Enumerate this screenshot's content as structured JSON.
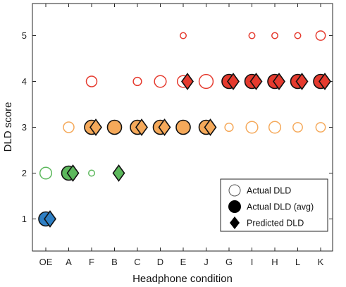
{
  "chart_data": {
    "type": "scatter",
    "xlabel": "Headphone condition",
    "ylabel": "DLD score",
    "categories": [
      "OE",
      "A",
      "F",
      "B",
      "C",
      "D",
      "E",
      "J",
      "G",
      "I",
      "H",
      "L",
      "K"
    ],
    "ylim": [
      0.3,
      5.7
    ],
    "yticks": [
      1,
      2,
      3,
      4,
      5
    ],
    "grid": false,
    "legend_position": "bottom-right",
    "legend": [
      {
        "label": "Actual DLD",
        "marker": "open-circle"
      },
      {
        "label": "Actual DLD (avg)",
        "marker": "filled-circle"
      },
      {
        "label": "Predicted DLD",
        "marker": "diamond"
      }
    ],
    "score_colors": {
      "1": "#2e7fc4",
      "2": "#5cb85c",
      "3": "#f5a95a",
      "4": "#e53a2e",
      "5": "#e53a2e"
    },
    "actual_dld": [
      {
        "category": "OE",
        "score": 2,
        "frequency": 0.35
      },
      {
        "category": "A",
        "score": 3,
        "frequency": 0.3
      },
      {
        "category": "F",
        "score": 2,
        "frequency": 0.1
      },
      {
        "category": "F",
        "score": 4,
        "frequency": 0.3
      },
      {
        "category": "C",
        "score": 4,
        "frequency": 0.2
      },
      {
        "category": "D",
        "score": 4,
        "frequency": 0.35
      },
      {
        "category": "E",
        "score": 4,
        "frequency": 0.35
      },
      {
        "category": "E",
        "score": 5,
        "frequency": 0.1
      },
      {
        "category": "J",
        "score": 4,
        "frequency": 0.45
      },
      {
        "category": "G",
        "score": 3,
        "frequency": 0.2
      },
      {
        "category": "I",
        "score": 3,
        "frequency": 0.35
      },
      {
        "category": "I",
        "score": 5,
        "frequency": 0.1
      },
      {
        "category": "H",
        "score": 3,
        "frequency": 0.35
      },
      {
        "category": "H",
        "score": 5,
        "frequency": 0.1
      },
      {
        "category": "L",
        "score": 3,
        "frequency": 0.25
      },
      {
        "category": "L",
        "score": 5,
        "frequency": 0.1
      },
      {
        "category": "K",
        "score": 3,
        "frequency": 0.25
      },
      {
        "category": "K",
        "score": 5,
        "frequency": 0.25
      }
    ],
    "actual_dld_avg": [
      {
        "category": "OE",
        "score": 1
      },
      {
        "category": "A",
        "score": 2
      },
      {
        "category": "F",
        "score": 3
      },
      {
        "category": "B",
        "score": 3
      },
      {
        "category": "C",
        "score": 3
      },
      {
        "category": "D",
        "score": 3
      },
      {
        "category": "E",
        "score": 3
      },
      {
        "category": "J",
        "score": 3
      },
      {
        "category": "G",
        "score": 4
      },
      {
        "category": "I",
        "score": 4
      },
      {
        "category": "H",
        "score": 4
      },
      {
        "category": "L",
        "score": 4
      },
      {
        "category": "K",
        "score": 4
      }
    ],
    "predicted_dld": [
      {
        "category": "OE",
        "score": 1
      },
      {
        "category": "A",
        "score": 2
      },
      {
        "category": "F",
        "score": 3
      },
      {
        "category": "B",
        "score": 2
      },
      {
        "category": "C",
        "score": 3
      },
      {
        "category": "D",
        "score": 3
      },
      {
        "category": "E",
        "score": 4
      },
      {
        "category": "J",
        "score": 3
      },
      {
        "category": "G",
        "score": 4
      },
      {
        "category": "I",
        "score": 4
      },
      {
        "category": "H",
        "score": 4
      },
      {
        "category": "L",
        "score": 4
      },
      {
        "category": "K",
        "score": 4
      }
    ]
  }
}
